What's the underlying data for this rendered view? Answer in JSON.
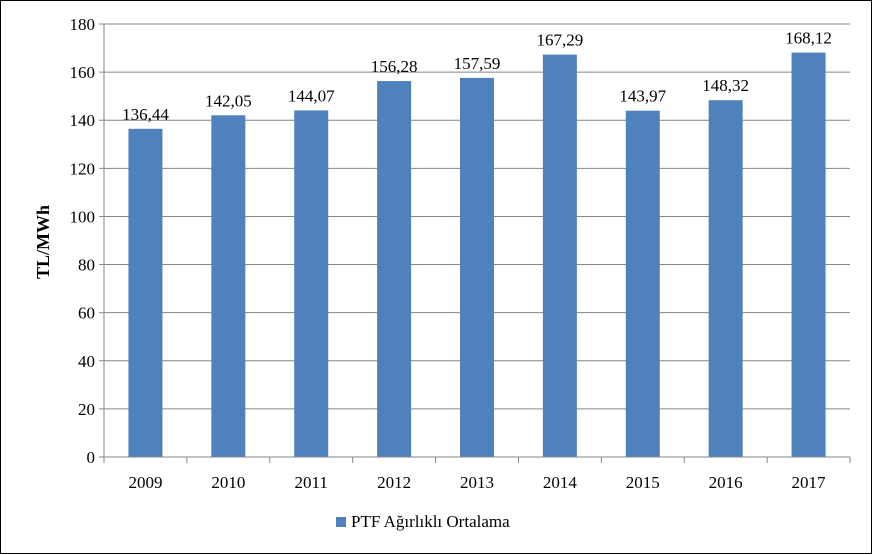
{
  "chart_data": {
    "type": "bar",
    "categories": [
      "2009",
      "2010",
      "2011",
      "2012",
      "2013",
      "2014",
      "2015",
      "2016",
      "2017"
    ],
    "series": [
      {
        "name": "PTF Ağırlıklı Ortalama",
        "values": [
          136.44,
          142.05,
          144.07,
          156.28,
          157.59,
          167.29,
          143.97,
          148.32,
          168.12
        ],
        "labels": [
          "136,44",
          "142,05",
          "144,07",
          "156,28",
          "157,59",
          "167,29",
          "143,97",
          "148,32",
          "168,12"
        ],
        "color": "#4F81BD"
      }
    ],
    "title": "",
    "xlabel": "",
    "ylabel": "TL/MWh",
    "ylim": [
      0,
      180
    ],
    "yticks": [
      0,
      20,
      40,
      60,
      80,
      100,
      120,
      140,
      160,
      180
    ],
    "grid": true,
    "legend_position": "bottom"
  }
}
